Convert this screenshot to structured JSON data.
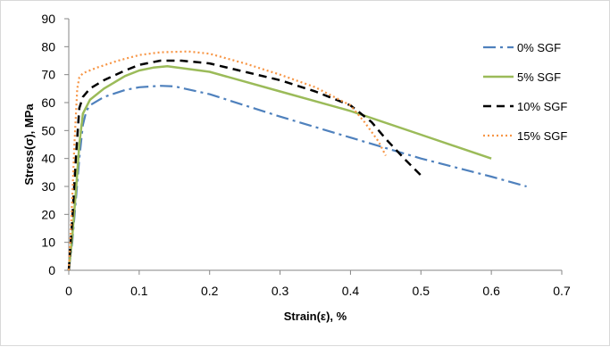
{
  "chart_data": {
    "type": "line",
    "title": "",
    "xlabel": "Strain(ε), %",
    "ylabel": "Stress(σ), MPa",
    "xlim": [
      0,
      0.7
    ],
    "ylim": [
      0,
      90
    ],
    "x_ticks": [
      "0",
      "0.1",
      "0.2",
      "0.3",
      "0.4",
      "0.5",
      "0.6",
      "0.7"
    ],
    "y_ticks": [
      "0",
      "10",
      "20",
      "30",
      "40",
      "50",
      "60",
      "70",
      "80",
      "90"
    ],
    "grid": false,
    "legend_position": "right",
    "series": [
      {
        "name": "0% SGF",
        "color": "#4f81bd",
        "dash": "dash-dot",
        "x": [
          0,
          0.005,
          0.01,
          0.015,
          0.02,
          0.025,
          0.03,
          0.05,
          0.08,
          0.1,
          0.13,
          0.15,
          0.2,
          0.3,
          0.4,
          0.5,
          0.6,
          0.65
        ],
        "y": [
          0,
          10,
          25,
          40,
          52,
          57,
          59,
          62,
          64.5,
          65.5,
          66,
          65.8,
          63,
          55,
          47.5,
          40,
          33.5,
          30
        ]
      },
      {
        "name": "5% SGF",
        "color": "#9bbb59",
        "dash": "solid",
        "x": [
          0,
          0.005,
          0.01,
          0.015,
          0.02,
          0.03,
          0.05,
          0.08,
          0.1,
          0.12,
          0.14,
          0.2,
          0.3,
          0.4,
          0.5,
          0.6
        ],
        "y": [
          0,
          12,
          28,
          45,
          56,
          61,
          65,
          69.5,
          71.5,
          72.5,
          73,
          71,
          64,
          57,
          48.5,
          40
        ]
      },
      {
        "name": "10% SGF",
        "color": "#000000",
        "dash": "dash",
        "x": [
          0,
          0.005,
          0.01,
          0.015,
          0.02,
          0.03,
          0.05,
          0.08,
          0.1,
          0.13,
          0.16,
          0.2,
          0.25,
          0.3,
          0.35,
          0.4,
          0.43,
          0.45,
          0.48,
          0.5
        ],
        "y": [
          0,
          18,
          40,
          58,
          62,
          65,
          68,
          71.5,
          73.5,
          75,
          75,
          74,
          71,
          68,
          64,
          59,
          53,
          47,
          39,
          34
        ]
      },
      {
        "name": "15% SGF",
        "color": "#f79646",
        "dash": "dot",
        "x": [
          0,
          0.004,
          0.008,
          0.012,
          0.015,
          0.02,
          0.04,
          0.07,
          0.1,
          0.13,
          0.17,
          0.2,
          0.25,
          0.3,
          0.35,
          0.4,
          0.42,
          0.44,
          0.45
        ],
        "y": [
          0,
          20,
          45,
          65,
          69,
          70.5,
          72.5,
          75,
          77,
          78,
          78.3,
          77.5,
          74,
          70,
          65.5,
          59,
          53,
          46,
          41
        ]
      }
    ]
  }
}
